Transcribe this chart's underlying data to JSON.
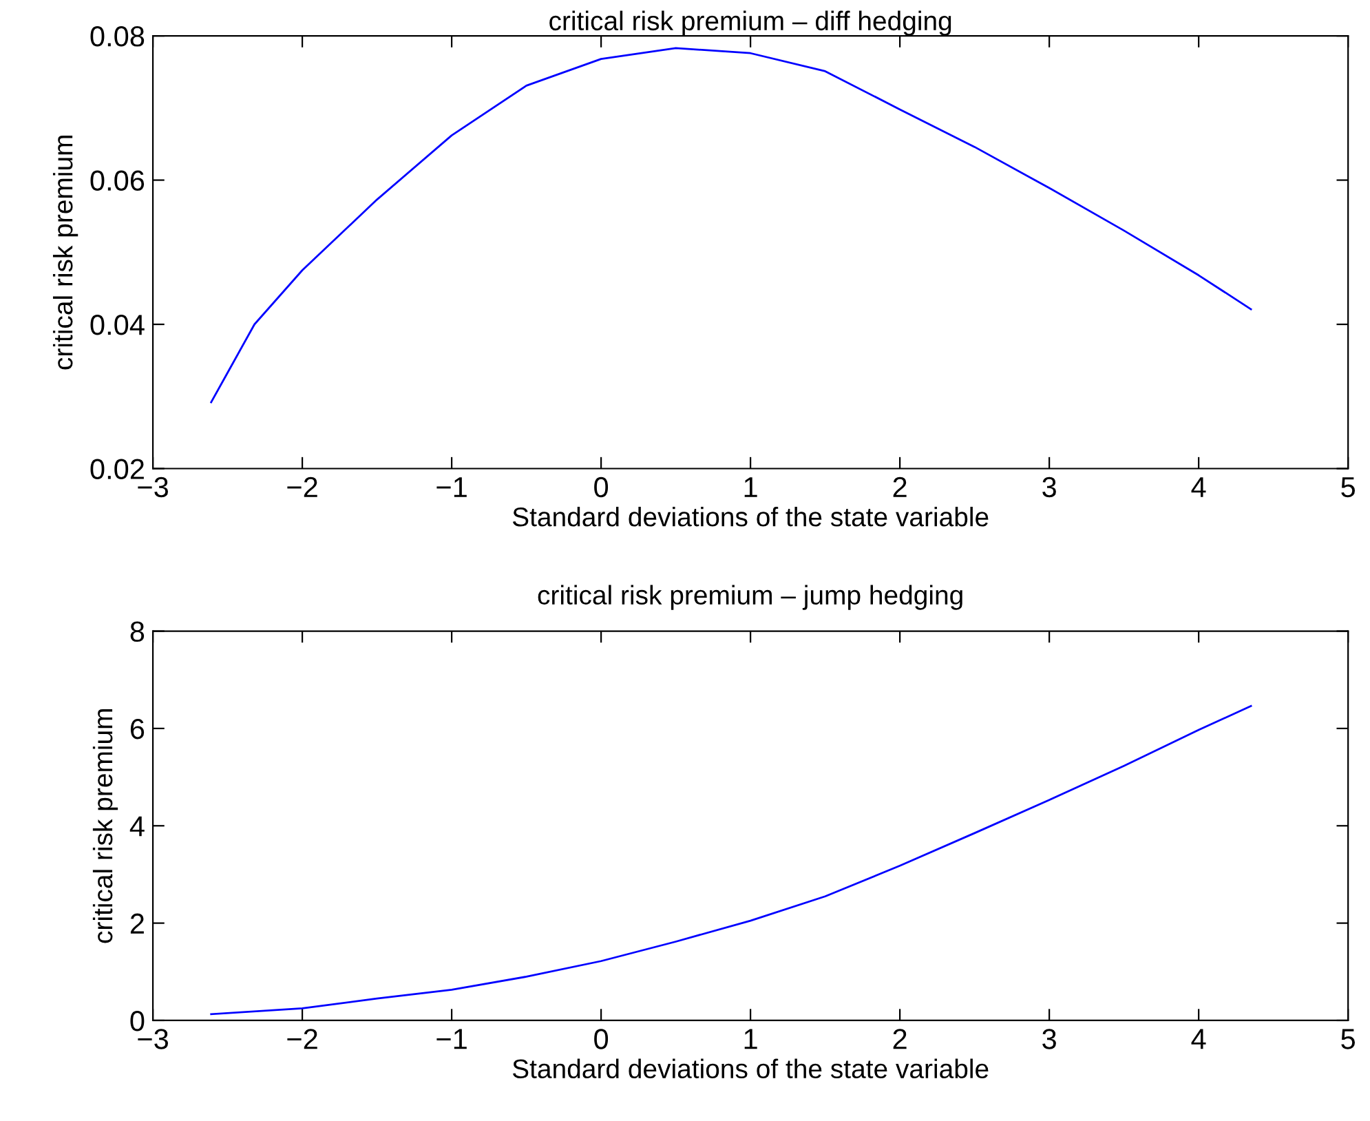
{
  "chart_data": [
    {
      "type": "line",
      "title": "critical risk premium – diff hedging",
      "xlabel": "Standard deviations of the state variable",
      "ylabel": "critical risk premium",
      "xlim": [
        -3,
        5
      ],
      "xticks": [
        {
          "value": -3,
          "label": "−3"
        },
        {
          "value": -2,
          "label": "−2"
        },
        {
          "value": -1,
          "label": "−1"
        },
        0,
        1,
        2,
        3,
        4,
        5
      ],
      "ylim": [
        0.02,
        0.08
      ],
      "yticks": [
        0.02,
        0.04,
        0.06,
        0.08
      ],
      "grid": false,
      "legend": false,
      "series": [
        {
          "color": "#0000ff",
          "x": [
            -2.61,
            -2.5,
            -2.32,
            -2,
            -1.5,
            -1,
            -0.5,
            0,
            0.5,
            1,
            1.5,
            2,
            2.5,
            3,
            3.5,
            4,
            4.35
          ],
          "values": [
            0.0292,
            0.0333,
            0.04,
            0.0475,
            0.0573,
            0.0662,
            0.0731,
            0.0768,
            0.0783,
            0.0776,
            0.0751,
            0.0698,
            0.0646,
            0.0589,
            0.053,
            0.0468,
            0.0421
          ]
        }
      ]
    },
    {
      "type": "line",
      "title": "critical risk premium – jump hedging",
      "xlabel": "Standard deviations of the state variable",
      "ylabel": "critical risk premium",
      "xlim": [
        -3,
        5
      ],
      "xticks": [
        {
          "value": -3,
          "label": "−3"
        },
        {
          "value": -2,
          "label": "−2"
        },
        {
          "value": -1,
          "label": "−1"
        },
        0,
        1,
        2,
        3,
        4,
        5
      ],
      "ylim": [
        0,
        8
      ],
      "yticks": [
        0,
        2,
        4,
        6,
        8
      ],
      "grid": false,
      "legend": false,
      "series": [
        {
          "color": "#0000ff",
          "x": [
            -2.61,
            -2,
            -1.5,
            -1,
            -0.5,
            0,
            0.5,
            1,
            1.5,
            2,
            2.5,
            3,
            3.5,
            4,
            4.35
          ],
          "values": [
            0.13,
            0.25,
            0.45,
            0.63,
            0.9,
            1.22,
            1.62,
            2.05,
            2.55,
            3.18,
            3.85,
            4.53,
            5.23,
            5.97,
            6.46
          ]
        }
      ]
    }
  ]
}
